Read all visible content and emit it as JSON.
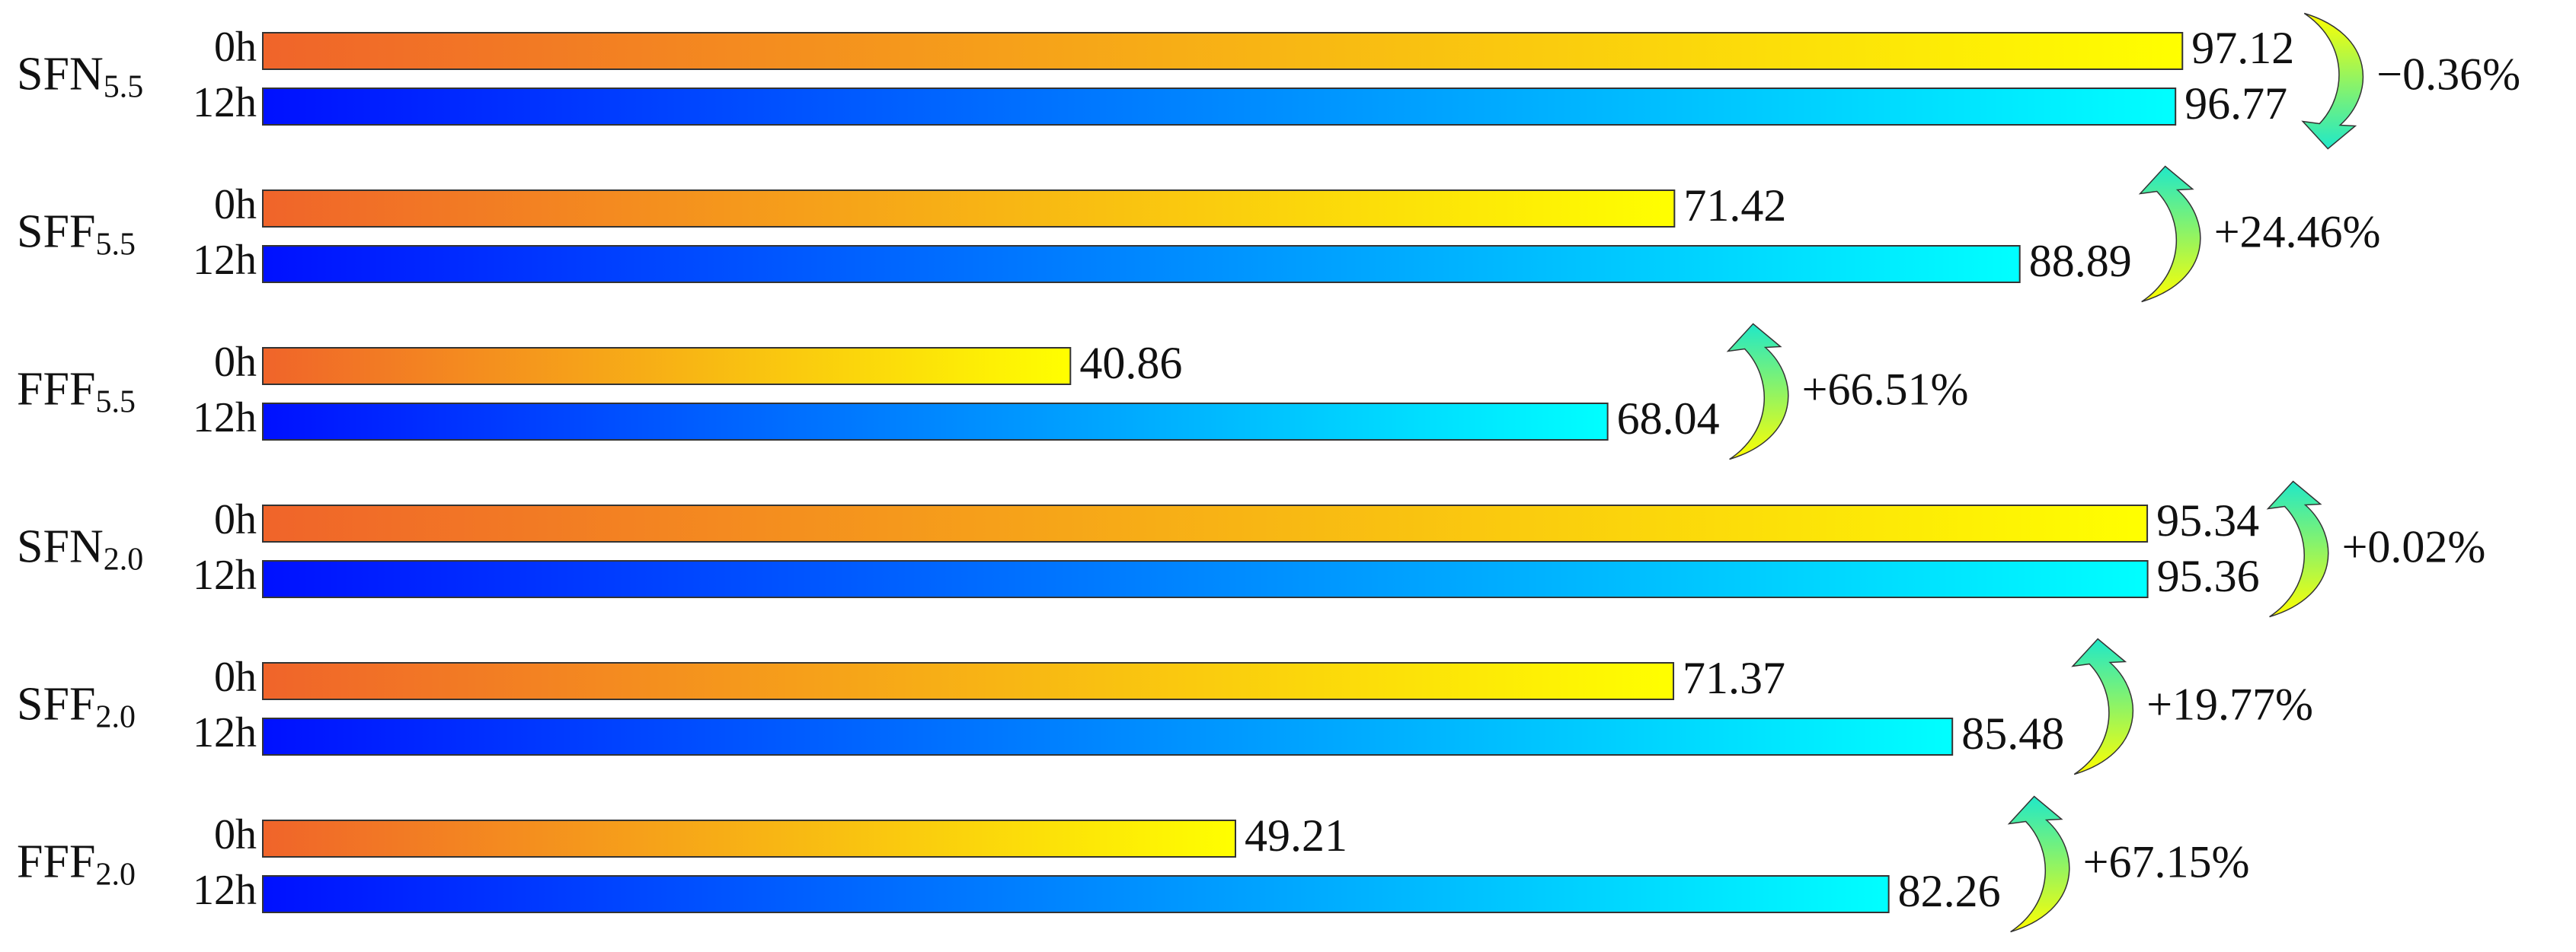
{
  "chart_data": {
    "type": "bar",
    "orientation": "horizontal",
    "xlim": [
      0,
      100
    ],
    "categories": [
      {
        "label": "SFN",
        "sub": "5.5"
      },
      {
        "label": "SFF",
        "sub": "5.5"
      },
      {
        "label": "FFF",
        "sub": "5.5"
      },
      {
        "label": "SFN",
        "sub": "2.0"
      },
      {
        "label": "SFF",
        "sub": "2.0"
      },
      {
        "label": "FFF",
        "sub": "2.0"
      }
    ],
    "series": [
      {
        "name": "0h",
        "color": [
          "#f0642a",
          "#ffff00"
        ],
        "values": [
          97.12,
          71.42,
          40.86,
          95.34,
          71.37,
          49.21
        ]
      },
      {
        "name": "12h",
        "color": [
          "#0010ff",
          "#00ffff"
        ],
        "values": [
          96.77,
          88.89,
          68.04,
          95.36,
          85.48,
          82.26
        ]
      }
    ],
    "changes": {
      "values": [
        -0.36,
        24.46,
        66.51,
        0.02,
        19.77,
        67.15
      ],
      "value_labels": [
        "−0.36%",
        "+24.46%",
        "+66.51%",
        "+0.02%",
        "+19.77%",
        "+67.15%"
      ],
      "color": [
        "#ffff00",
        "#20e8c8"
      ]
    }
  }
}
